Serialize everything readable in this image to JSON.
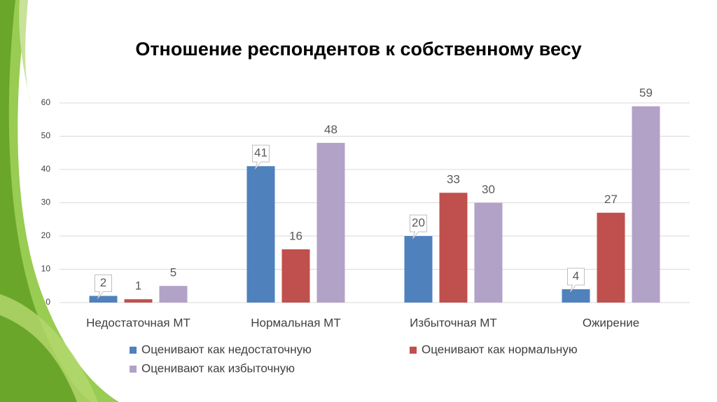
{
  "chart_data": {
    "type": "bar",
    "title": "Отношение респондентов к собственному весу",
    "categories": [
      "Недостаточная МТ",
      "Нормальная МТ",
      "Избыточная МТ",
      "Ожирение"
    ],
    "series": [
      {
        "name": "Оценивают как недостаточную",
        "color": "#4f81bd",
        "values": [
          2,
          41,
          20,
          4
        ]
      },
      {
        "name": "Оценивают как нормальную",
        "color": "#c0504d",
        "values": [
          1,
          16,
          33,
          27
        ]
      },
      {
        "name": "Оценивают как избыточную",
        "color": "#b3a2c7",
        "values": [
          5,
          48,
          30,
          59
        ]
      }
    ],
    "ylim": [
      0,
      60
    ],
    "yticks": [
      0,
      10,
      20,
      30,
      40,
      50,
      60
    ],
    "grid": true,
    "legend": "bottom"
  }
}
